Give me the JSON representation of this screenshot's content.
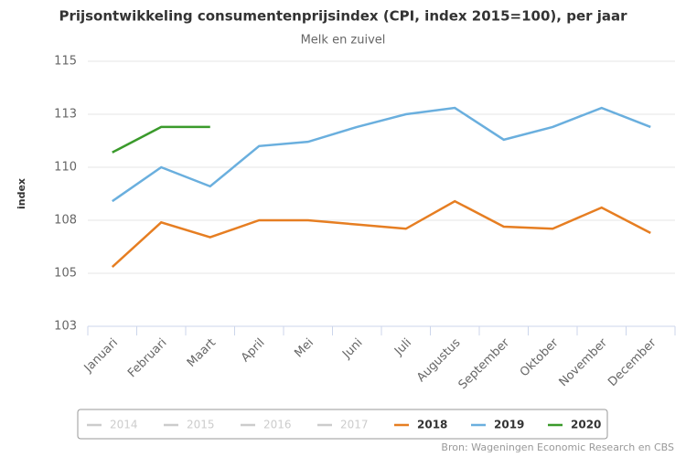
{
  "chart_data": {
    "type": "line",
    "title": "Prijsontwikkeling consumentenprijsindex (CPI, index 2015=100), per jaar",
    "subtitle": "Melk en zuivel",
    "y_label": "index",
    "source": "Bron: Wageningen Economic Research en CBS",
    "categories": [
      "Januari",
      "Februari",
      "Maart",
      "April",
      "Mei",
      "Juni",
      "Juli",
      "Augustus",
      "September",
      "Oktober",
      "November",
      "December"
    ],
    "ylim": [
      102.5,
      115
    ],
    "yticks": [
      {
        "value": 102.5,
        "label": "103"
      },
      {
        "value": 105,
        "label": "105"
      },
      {
        "value": 107.5,
        "label": "108"
      },
      {
        "value": 110,
        "label": "110"
      },
      {
        "value": 112.5,
        "label": "113"
      },
      {
        "value": 115,
        "label": "115"
      }
    ],
    "grid": true,
    "legend": "bottom",
    "series": [
      {
        "name": "2014",
        "color": "#cccccc",
        "visible": false,
        "values": [
          null,
          null,
          null,
          null,
          null,
          null,
          null,
          null,
          null,
          null,
          null,
          null
        ]
      },
      {
        "name": "2015",
        "color": "#cccccc",
        "visible": false,
        "values": [
          null,
          null,
          null,
          null,
          null,
          null,
          null,
          null,
          null,
          null,
          null,
          null
        ]
      },
      {
        "name": "2016",
        "color": "#cccccc",
        "visible": false,
        "values": [
          null,
          null,
          null,
          null,
          null,
          null,
          null,
          null,
          null,
          null,
          null,
          null
        ]
      },
      {
        "name": "2017",
        "color": "#cccccc",
        "visible": false,
        "values": [
          null,
          null,
          null,
          null,
          null,
          null,
          null,
          null,
          null,
          null,
          null,
          null
        ]
      },
      {
        "name": "2018",
        "color": "#e67e22",
        "visible": true,
        "values": [
          105.3,
          107.4,
          106.7,
          107.5,
          107.5,
          107.3,
          107.1,
          108.4,
          107.2,
          107.1,
          108.1,
          106.9
        ]
      },
      {
        "name": "2019",
        "color": "#6aafde",
        "visible": true,
        "values": [
          108.4,
          110.0,
          109.1,
          111.0,
          111.2,
          111.9,
          112.5,
          112.8,
          111.3,
          111.9,
          112.8,
          111.9
        ]
      },
      {
        "name": "2020",
        "color": "#3a9a2b",
        "visible": true,
        "values": [
          110.7,
          111.9,
          111.9,
          null,
          null,
          null,
          null,
          null,
          null,
          null,
          null,
          null
        ]
      }
    ]
  }
}
